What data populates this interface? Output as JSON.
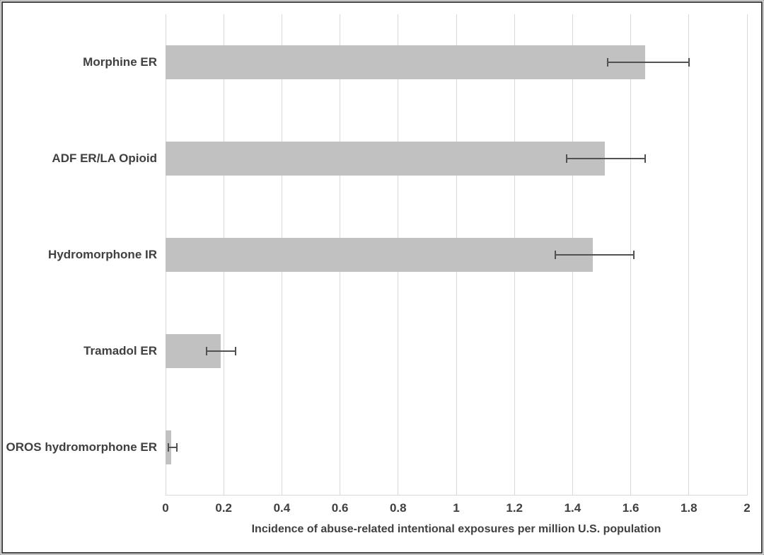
{
  "chart_data": {
    "type": "bar",
    "orientation": "horizontal",
    "title": "",
    "categories": [
      "Morphine ER",
      "ADF ER/LA Opioid",
      "Hydromorphone IR",
      "Tramadol ER",
      "OROS hydromorphone ER"
    ],
    "values": [
      1.65,
      1.51,
      1.47,
      0.19,
      0.02
    ],
    "error_low": [
      1.52,
      1.38,
      1.34,
      0.14,
      0.01
    ],
    "error_high": [
      1.8,
      1.65,
      1.61,
      0.24,
      0.04
    ],
    "xlabel": "Incidence of abuse-related intentional exposures per million U.S. population",
    "ylabel": "",
    "xlim": [
      0,
      2
    ],
    "xtick_values": [
      0,
      0.2,
      0.4,
      0.6,
      0.8,
      1,
      1.2,
      1.4,
      1.6,
      1.8,
      2
    ],
    "xtick_labels": [
      "0",
      "0.2",
      "0.4",
      "0.6",
      "0.8",
      "1",
      "1.2",
      "1.4",
      "1.6",
      "1.8",
      "2"
    ],
    "grid": "vertical",
    "legend": "none",
    "colors": {
      "bar_fill": "#c1c1c1",
      "gridline": "#d9d9d9",
      "error_bar": "#525252",
      "label_text": "#404040",
      "frame_border": "#3f3f3f"
    }
  }
}
